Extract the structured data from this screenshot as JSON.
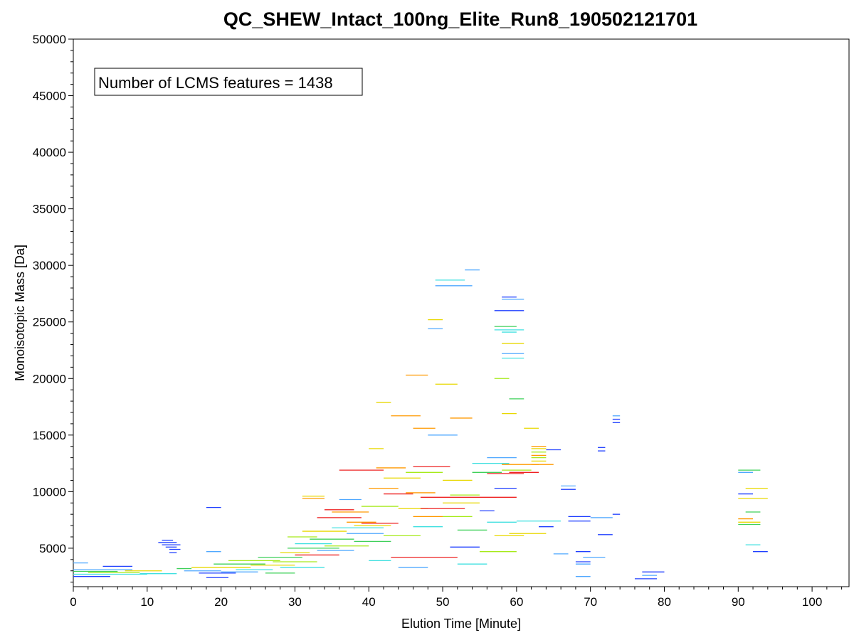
{
  "chart_data": {
    "type": "scatter",
    "title": "QC_SHEW_Intact_100ng_Elite_Run8_190502121701",
    "xlabel": "Elution Time [Minute]",
    "ylabel": "Monoisotopic Mass [Da]",
    "xlim": [
      0,
      105
    ],
    "ylim": [
      1600,
      50000
    ],
    "x_ticks": [
      0,
      10,
      20,
      30,
      40,
      50,
      60,
      70,
      80,
      90,
      100
    ],
    "y_ticks": [
      5000,
      10000,
      15000,
      20000,
      25000,
      30000,
      35000,
      40000,
      45000,
      50000
    ],
    "annotation": "Number of LCMS features = 1438",
    "grid": false,
    "legend": "none",
    "colors": {
      "blue": "#1f3fff",
      "lightblue": "#4fa8ff",
      "cyan": "#40e0e0",
      "green": "#3fd05a",
      "lime": "#a6ea1a",
      "yellow": "#e8d800",
      "orange": "#ff9900",
      "red": "#ee2222"
    },
    "features": [
      {
        "x1": 0,
        "x2": 10,
        "mass": 2700,
        "c": "cyan"
      },
      {
        "x1": 0,
        "x2": 6,
        "mass": 2950,
        "c": "green"
      },
      {
        "x1": 0,
        "x2": 8,
        "mass": 3100,
        "c": "lightblue"
      },
      {
        "x1": 0,
        "x2": 5,
        "mass": 2500,
        "c": "blue"
      },
      {
        "x1": 0,
        "x2": 2,
        "mass": 3700,
        "c": "lightblue"
      },
      {
        "x1": 2,
        "x2": 9,
        "mass": 2850,
        "c": "lime"
      },
      {
        "x1": 4,
        "x2": 8,
        "mass": 3400,
        "c": "blue"
      },
      {
        "x1": 7,
        "x2": 12,
        "mass": 3000,
        "c": "yellow"
      },
      {
        "x1": 9,
        "x2": 14,
        "mass": 2750,
        "c": "cyan"
      },
      {
        "x1": 11.5,
        "x2": 14,
        "mass": 5500,
        "c": "blue"
      },
      {
        "x1": 12,
        "x2": 14.5,
        "mass": 5300,
        "c": "blue"
      },
      {
        "x1": 12.5,
        "x2": 14,
        "mass": 5100,
        "c": "blue"
      },
      {
        "x1": 13,
        "x2": 14.5,
        "mass": 4900,
        "c": "blue"
      },
      {
        "x1": 13,
        "x2": 14,
        "mass": 4600,
        "c": "blue"
      },
      {
        "x1": 12,
        "x2": 13.5,
        "mass": 5700,
        "c": "blue"
      },
      {
        "x1": 14,
        "x2": 16,
        "mass": 3200,
        "c": "green"
      },
      {
        "x1": 15,
        "x2": 20,
        "mass": 3000,
        "c": "lightblue"
      },
      {
        "x1": 16,
        "x2": 24,
        "mass": 3300,
        "c": "yellow"
      },
      {
        "x1": 17,
        "x2": 22,
        "mass": 2800,
        "c": "blue"
      },
      {
        "x1": 18,
        "x2": 21,
        "mass": 2400,
        "c": "blue"
      },
      {
        "x1": 18,
        "x2": 20,
        "mass": 8600,
        "c": "blue"
      },
      {
        "x1": 18,
        "x2": 20,
        "mass": 4700,
        "c": "lightblue"
      },
      {
        "x1": 19,
        "x2": 26,
        "mass": 3600,
        "c": "green"
      },
      {
        "x1": 20,
        "x2": 25,
        "mass": 2900,
        "c": "lightblue"
      },
      {
        "x1": 21,
        "x2": 28,
        "mass": 3900,
        "c": "lime"
      },
      {
        "x1": 22,
        "x2": 27,
        "mass": 3100,
        "c": "cyan"
      },
      {
        "x1": 24,
        "x2": 30,
        "mass": 3500,
        "c": "yellow"
      },
      {
        "x1": 25,
        "x2": 31,
        "mass": 4200,
        "c": "green"
      },
      {
        "x1": 26,
        "x2": 30,
        "mass": 2800,
        "c": "green"
      },
      {
        "x1": 27,
        "x2": 33,
        "mass": 3800,
        "c": "lime"
      },
      {
        "x1": 28,
        "x2": 32,
        "mass": 4600,
        "c": "yellow"
      },
      {
        "x1": 28,
        "x2": 34,
        "mass": 3300,
        "c": "cyan"
      },
      {
        "x1": 29,
        "x2": 36,
        "mass": 5000,
        "c": "green"
      },
      {
        "x1": 29,
        "x2": 33,
        "mass": 6000,
        "c": "lime"
      },
      {
        "x1": 30,
        "x2": 35,
        "mass": 5400,
        "c": "cyan"
      },
      {
        "x1": 30,
        "x2": 36,
        "mass": 4400,
        "c": "red"
      },
      {
        "x1": 31,
        "x2": 34,
        "mass": 9400,
        "c": "orange"
      },
      {
        "x1": 31,
        "x2": 34,
        "mass": 9600,
        "c": "yellow"
      },
      {
        "x1": 31,
        "x2": 37,
        "mass": 6500,
        "c": "yellow"
      },
      {
        "x1": 32,
        "x2": 38,
        "mass": 5800,
        "c": "green"
      },
      {
        "x1": 33,
        "x2": 39,
        "mass": 7700,
        "c": "red"
      },
      {
        "x1": 33,
        "x2": 38,
        "mass": 4800,
        "c": "lightblue"
      },
      {
        "x1": 34,
        "x2": 38,
        "mass": 8400,
        "c": "red"
      },
      {
        "x1": 34,
        "x2": 40,
        "mass": 5200,
        "c": "lime"
      },
      {
        "x1": 35,
        "x2": 40,
        "mass": 8200,
        "c": "orange"
      },
      {
        "x1": 35,
        "x2": 42,
        "mass": 6800,
        "c": "cyan"
      },
      {
        "x1": 36,
        "x2": 42,
        "mass": 11900,
        "c": "red"
      },
      {
        "x1": 36,
        "x2": 39,
        "mass": 9300,
        "c": "lightblue"
      },
      {
        "x1": 37,
        "x2": 41,
        "mass": 7300,
        "c": "orange"
      },
      {
        "x1": 37,
        "x2": 42,
        "mass": 6300,
        "c": "lightblue"
      },
      {
        "x1": 38,
        "x2": 43,
        "mass": 5600,
        "c": "green"
      },
      {
        "x1": 38,
        "x2": 43,
        "mass": 7000,
        "c": "yellow"
      },
      {
        "x1": 39,
        "x2": 44,
        "mass": 7200,
        "c": "red"
      },
      {
        "x1": 39,
        "x2": 44,
        "mass": 8700,
        "c": "lime"
      },
      {
        "x1": 40,
        "x2": 42,
        "mass": 13800,
        "c": "yellow"
      },
      {
        "x1": 40,
        "x2": 44,
        "mass": 10300,
        "c": "orange"
      },
      {
        "x1": 40,
        "x2": 43,
        "mass": 3900,
        "c": "cyan"
      },
      {
        "x1": 41,
        "x2": 43,
        "mass": 17900,
        "c": "yellow"
      },
      {
        "x1": 41,
        "x2": 45,
        "mass": 12100,
        "c": "orange"
      },
      {
        "x1": 42,
        "x2": 46,
        "mass": 9800,
        "c": "red"
      },
      {
        "x1": 42,
        "x2": 47,
        "mass": 11200,
        "c": "yellow"
      },
      {
        "x1": 42,
        "x2": 47,
        "mass": 6100,
        "c": "lime"
      },
      {
        "x1": 43,
        "x2": 47,
        "mass": 16700,
        "c": "orange"
      },
      {
        "x1": 43,
        "x2": 52,
        "mass": 4200,
        "c": "red"
      },
      {
        "x1": 44,
        "x2": 48,
        "mass": 8500,
        "c": "yellow"
      },
      {
        "x1": 44,
        "x2": 48,
        "mass": 3300,
        "c": "lightblue"
      },
      {
        "x1": 45,
        "x2": 48,
        "mass": 20300,
        "c": "orange"
      },
      {
        "x1": 45,
        "x2": 49,
        "mass": 9900,
        "c": "orange"
      },
      {
        "x1": 45,
        "x2": 50,
        "mass": 11700,
        "c": "lime"
      },
      {
        "x1": 46,
        "x2": 49,
        "mass": 15600,
        "c": "orange"
      },
      {
        "x1": 46,
        "x2": 50,
        "mass": 7800,
        "c": "orange"
      },
      {
        "x1": 46,
        "x2": 51,
        "mass": 12200,
        "c": "red"
      },
      {
        "x1": 46,
        "x2": 50,
        "mass": 6900,
        "c": "cyan"
      },
      {
        "x1": 47,
        "x2": 53,
        "mass": 8500,
        "c": "red"
      },
      {
        "x1": 47,
        "x2": 60,
        "mass": 9500,
        "c": "red"
      },
      {
        "x1": 48,
        "x2": 50,
        "mass": 25200,
        "c": "yellow"
      },
      {
        "x1": 48,
        "x2": 50,
        "mass": 24400,
        "c": "lightblue"
      },
      {
        "x1": 48,
        "x2": 52,
        "mass": 15000,
        "c": "lightblue"
      },
      {
        "x1": 49,
        "x2": 53,
        "mass": 28700,
        "c": "cyan"
      },
      {
        "x1": 49,
        "x2": 54,
        "mass": 28200,
        "c": "lightblue"
      },
      {
        "x1": 49,
        "x2": 52,
        "mass": 19500,
        "c": "yellow"
      },
      {
        "x1": 50,
        "x2": 54,
        "mass": 11000,
        "c": "yellow"
      },
      {
        "x1": 50,
        "x2": 55,
        "mass": 9000,
        "c": "yellow"
      },
      {
        "x1": 50,
        "x2": 54,
        "mass": 7800,
        "c": "lime"
      },
      {
        "x1": 51,
        "x2": 54,
        "mass": 16500,
        "c": "orange"
      },
      {
        "x1": 51,
        "x2": 55,
        "mass": 9700,
        "c": "lime"
      },
      {
        "x1": 51,
        "x2": 55,
        "mass": 5100,
        "c": "blue"
      },
      {
        "x1": 52,
        "x2": 56,
        "mass": 6600,
        "c": "green"
      },
      {
        "x1": 52,
        "x2": 56,
        "mass": 3600,
        "c": "cyan"
      },
      {
        "x1": 53,
        "x2": 55,
        "mass": 29600,
        "c": "lightblue"
      },
      {
        "x1": 54,
        "x2": 58,
        "mass": 11700,
        "c": "green"
      },
      {
        "x1": 54,
        "x2": 59,
        "mass": 12500,
        "c": "cyan"
      },
      {
        "x1": 55,
        "x2": 57,
        "mass": 8300,
        "c": "blue"
      },
      {
        "x1": 55,
        "x2": 60,
        "mass": 4700,
        "c": "lime"
      },
      {
        "x1": 56,
        "x2": 60,
        "mass": 13000,
        "c": "lightblue"
      },
      {
        "x1": 56,
        "x2": 61,
        "mass": 11600,
        "c": "red"
      },
      {
        "x1": 56,
        "x2": 60,
        "mass": 7300,
        "c": "cyan"
      },
      {
        "x1": 57,
        "x2": 60,
        "mass": 10300,
        "c": "blue"
      },
      {
        "x1": 57,
        "x2": 61,
        "mass": 6100,
        "c": "yellow"
      },
      {
        "x1": 57,
        "x2": 59,
        "mass": 20000,
        "c": "lime"
      },
      {
        "x1": 57,
        "x2": 61,
        "mass": 26000,
        "c": "blue"
      },
      {
        "x1": 58,
        "x2": 60,
        "mass": 27200,
        "c": "blue"
      },
      {
        "x1": 58,
        "x2": 61,
        "mass": 27000,
        "c": "lightblue"
      },
      {
        "x1": 57,
        "x2": 60,
        "mass": 24600,
        "c": "green"
      },
      {
        "x1": 57,
        "x2": 61,
        "mass": 24300,
        "c": "cyan"
      },
      {
        "x1": 58,
        "x2": 60,
        "mass": 24100,
        "c": "cyan"
      },
      {
        "x1": 58,
        "x2": 61,
        "mass": 23100,
        "c": "yellow"
      },
      {
        "x1": 58,
        "x2": 61,
        "mass": 22200,
        "c": "lightblue"
      },
      {
        "x1": 58,
        "x2": 61,
        "mass": 21800,
        "c": "cyan"
      },
      {
        "x1": 58,
        "x2": 60,
        "mass": 16900,
        "c": "yellow"
      },
      {
        "x1": 59,
        "x2": 61,
        "mass": 18200,
        "c": "green"
      },
      {
        "x1": 58,
        "x2": 63,
        "mass": 12400,
        "c": "orange"
      },
      {
        "x1": 58,
        "x2": 62,
        "mass": 11900,
        "c": "lime"
      },
      {
        "x1": 59,
        "x2": 63,
        "mass": 11700,
        "c": "red"
      },
      {
        "x1": 59,
        "x2": 64,
        "mass": 6300,
        "c": "yellow"
      },
      {
        "x1": 60,
        "x2": 66,
        "mass": 7400,
        "c": "cyan"
      },
      {
        "x1": 61,
        "x2": 63,
        "mass": 15600,
        "c": "yellow"
      },
      {
        "x1": 62,
        "x2": 64,
        "mass": 14000,
        "c": "orange"
      },
      {
        "x1": 62,
        "x2": 64,
        "mass": 13800,
        "c": "yellow"
      },
      {
        "x1": 62,
        "x2": 64,
        "mass": 13500,
        "c": "lime"
      },
      {
        "x1": 62,
        "x2": 64,
        "mass": 13200,
        "c": "orange"
      },
      {
        "x1": 62,
        "x2": 64,
        "mass": 13000,
        "c": "lime"
      },
      {
        "x1": 62,
        "x2": 64,
        "mass": 12700,
        "c": "yellow"
      },
      {
        "x1": 62,
        "x2": 65,
        "mass": 12400,
        "c": "orange"
      },
      {
        "x1": 63,
        "x2": 65,
        "mass": 6900,
        "c": "blue"
      },
      {
        "x1": 64,
        "x2": 66,
        "mass": 13700,
        "c": "blue"
      },
      {
        "x1": 65,
        "x2": 67,
        "mass": 4500,
        "c": "lightblue"
      },
      {
        "x1": 66,
        "x2": 68,
        "mass": 10500,
        "c": "lightblue"
      },
      {
        "x1": 66,
        "x2": 68,
        "mass": 10200,
        "c": "blue"
      },
      {
        "x1": 67,
        "x2": 70,
        "mass": 7800,
        "c": "blue"
      },
      {
        "x1": 67,
        "x2": 70,
        "mass": 7400,
        "c": "blue"
      },
      {
        "x1": 68,
        "x2": 70,
        "mass": 4700,
        "c": "blue"
      },
      {
        "x1": 68,
        "x2": 70,
        "mass": 3800,
        "c": "blue"
      },
      {
        "x1": 68,
        "x2": 70,
        "mass": 3600,
        "c": "lightblue"
      },
      {
        "x1": 68,
        "x2": 70,
        "mass": 2500,
        "c": "lightblue"
      },
      {
        "x1": 69,
        "x2": 72,
        "mass": 4200,
        "c": "lightblue"
      },
      {
        "x1": 71,
        "x2": 72,
        "mass": 13900,
        "c": "blue"
      },
      {
        "x1": 71,
        "x2": 72,
        "mass": 13600,
        "c": "blue"
      },
      {
        "x1": 71,
        "x2": 73,
        "mass": 6200,
        "c": "blue"
      },
      {
        "x1": 70,
        "x2": 73,
        "mass": 7700,
        "c": "lightblue"
      },
      {
        "x1": 73,
        "x2": 74,
        "mass": 16700,
        "c": "lightblue"
      },
      {
        "x1": 73,
        "x2": 74,
        "mass": 16400,
        "c": "blue"
      },
      {
        "x1": 73,
        "x2": 74,
        "mass": 16100,
        "c": "blue"
      },
      {
        "x1": 73,
        "x2": 74,
        "mass": 8000,
        "c": "blue"
      },
      {
        "x1": 77,
        "x2": 80,
        "mass": 2900,
        "c": "blue"
      },
      {
        "x1": 77,
        "x2": 79,
        "mass": 2600,
        "c": "lightblue"
      },
      {
        "x1": 76,
        "x2": 79,
        "mass": 2300,
        "c": "blue"
      },
      {
        "x1": 90,
        "x2": 93,
        "mass": 11900,
        "c": "green"
      },
      {
        "x1": 90,
        "x2": 92,
        "mass": 11700,
        "c": "lightblue"
      },
      {
        "x1": 91,
        "x2": 94,
        "mass": 10300,
        "c": "yellow"
      },
      {
        "x1": 90,
        "x2": 92,
        "mass": 9800,
        "c": "blue"
      },
      {
        "x1": 90,
        "x2": 94,
        "mass": 9400,
        "c": "yellow"
      },
      {
        "x1": 91,
        "x2": 93,
        "mass": 8200,
        "c": "green"
      },
      {
        "x1": 90,
        "x2": 92,
        "mass": 7600,
        "c": "orange"
      },
      {
        "x1": 90,
        "x2": 93,
        "mass": 7300,
        "c": "yellow"
      },
      {
        "x1": 90,
        "x2": 93,
        "mass": 7100,
        "c": "green"
      },
      {
        "x1": 91,
        "x2": 93,
        "mass": 5300,
        "c": "cyan"
      },
      {
        "x1": 92,
        "x2": 94,
        "mass": 4700,
        "c": "blue"
      }
    ]
  }
}
